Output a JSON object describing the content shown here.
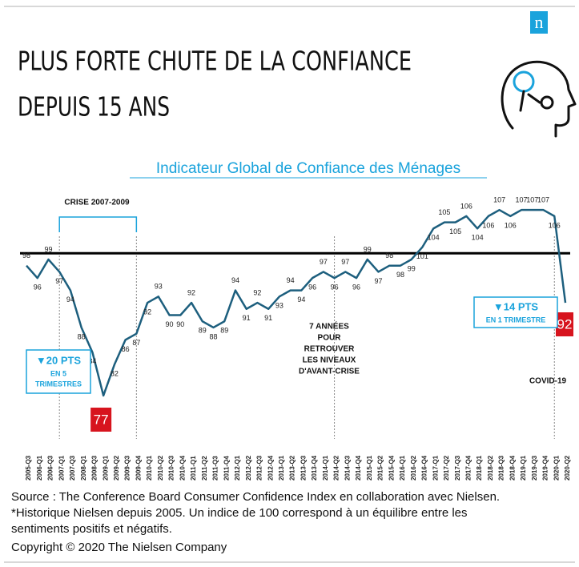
{
  "logo": "n",
  "chart_data": {
    "type": "line",
    "title": [
      "PLUS FORTE CHUTE DE LA CONFIANCE",
      "DEPUIS 15 ANS"
    ],
    "subtitle": "Indicateur  Global de Confiance des Ménages",
    "categories": [
      "2005-Q3",
      "2006-Q1",
      "2006-Q3",
      "2007-Q1",
      "2007-Q3",
      "2008-Q1",
      "2008-Q3",
      "2009-Q1",
      "2009-Q2",
      "2009-Q3",
      "2009-Q4",
      "2010-Q1",
      "2010-Q2",
      "2010-Q3",
      "2010-Q4",
      "2011-Q1",
      "2011-Q2",
      "2011-Q3",
      "2011-Q4",
      "2012-Q1",
      "2012-Q2",
      "2012-Q3",
      "2012-Q4",
      "2013-Q1",
      "2013-Q2",
      "2013-Q3",
      "2013-Q4",
      "2014-Q1",
      "2014-Q2",
      "2014-Q3",
      "2014-Q4",
      "2015-Q1",
      "2015-Q2",
      "2015-Q4",
      "2016-Q1",
      "2016-Q2",
      "2016-Q4",
      "2017-Q1",
      "2017-Q2",
      "2017-Q3",
      "2017-Q4",
      "2018-Q1",
      "2018-Q2",
      "2018-Q3",
      "2018-Q4",
      "2019-Q1",
      "2019-Q3",
      "2019-Q4",
      "2020-Q1",
      "2020-Q2"
    ],
    "values": [
      98,
      96,
      99,
      97,
      94,
      88,
      84,
      77,
      82,
      86,
      87,
      92,
      93,
      90,
      90,
      92,
      89,
      88,
      89,
      94,
      91,
      92,
      91,
      93,
      94,
      94,
      96,
      97,
      96,
      97,
      96,
      99,
      97,
      98,
      98,
      99,
      101,
      104,
      105,
      105,
      106,
      104,
      106,
      107,
      106,
      107,
      107,
      107,
      106,
      92
    ],
    "color": "#1d5f7e",
    "reference_line": 100,
    "ylim": [
      70,
      110
    ],
    "annotations": {
      "crisis": "CRISE 2007-2009",
      "recovery": [
        "7  ANNÉES",
        "POUR",
        "RETROUVER",
        "LES NIVEAUX",
        "D'AVANT-CRISE"
      ],
      "drop_2009": [
        "▼20 PTS",
        "EN 5",
        "TRIMESTRES"
      ],
      "drop_2020": [
        "▼14 PTS",
        "EN 1 TRIMESTRE"
      ],
      "covid": "COVID-19"
    }
  },
  "footer": {
    "source": [
      "Source : The Conference Board Consumer Confidence Index en collaboration avec Nielsen.",
      "*Historique Nielsen depuis 2005.  Un indice de 100 correspond à un équilibre entre les",
      "sentiments positifs et négatifs."
    ],
    "copyright": "Copyright © 2020 The Nielsen Company"
  }
}
